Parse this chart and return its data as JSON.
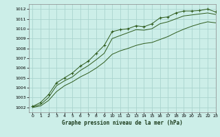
{
  "title": "Graphe pression niveau de la mer (hPa)",
  "bg_color": "#cceee8",
  "grid_color": "#aad4ce",
  "line_color": "#2d5a1b",
  "xlim": [
    -0.5,
    23
  ],
  "ylim": [
    1001.5,
    1012.5
  ],
  "xticks": [
    0,
    1,
    2,
    3,
    4,
    5,
    6,
    7,
    8,
    9,
    10,
    11,
    12,
    13,
    14,
    15,
    16,
    17,
    18,
    19,
    20,
    21,
    22,
    23
  ],
  "yticks": [
    1002,
    1003,
    1004,
    1005,
    1006,
    1007,
    1008,
    1009,
    1010,
    1011,
    1012
  ],
  "line1_x": [
    0,
    1,
    2,
    3,
    4,
    5,
    6,
    7,
    8,
    9,
    10,
    11,
    12,
    13,
    14,
    15,
    16,
    17,
    18,
    19,
    20,
    21,
    22,
    23
  ],
  "line1_y": [
    1002.1,
    1002.5,
    1003.3,
    1004.5,
    1005.0,
    1005.5,
    1006.2,
    1006.7,
    1007.5,
    1008.3,
    1009.7,
    1009.9,
    1010.0,
    1010.3,
    1010.2,
    1010.5,
    1011.1,
    1011.2,
    1011.6,
    1011.8,
    1011.8,
    1011.85,
    1012.0,
    1011.7
  ],
  "line2_x": [
    0,
    1,
    2,
    3,
    4,
    5,
    6,
    7,
    8,
    9,
    10,
    11,
    12,
    13,
    14,
    15,
    16,
    17,
    18,
    19,
    20,
    21,
    22,
    23
  ],
  "line2_y": [
    1002.05,
    1002.3,
    1003.0,
    1004.2,
    1004.7,
    1005.1,
    1005.75,
    1006.25,
    1006.85,
    1007.5,
    1009.0,
    1009.3,
    1009.6,
    1009.9,
    1009.85,
    1010.0,
    1010.5,
    1010.7,
    1011.0,
    1011.3,
    1011.4,
    1011.5,
    1011.6,
    1011.45
  ],
  "line3_x": [
    0,
    1,
    2,
    3,
    4,
    5,
    6,
    7,
    8,
    9,
    10,
    11,
    12,
    13,
    14,
    15,
    16,
    17,
    18,
    19,
    20,
    21,
    22,
    23
  ],
  "line3_y": [
    1002.0,
    1002.15,
    1002.7,
    1003.6,
    1004.2,
    1004.6,
    1005.1,
    1005.5,
    1006.0,
    1006.6,
    1007.4,
    1007.75,
    1008.0,
    1008.3,
    1008.5,
    1008.6,
    1008.9,
    1009.2,
    1009.6,
    1009.95,
    1010.25,
    1010.5,
    1010.7,
    1010.6
  ]
}
